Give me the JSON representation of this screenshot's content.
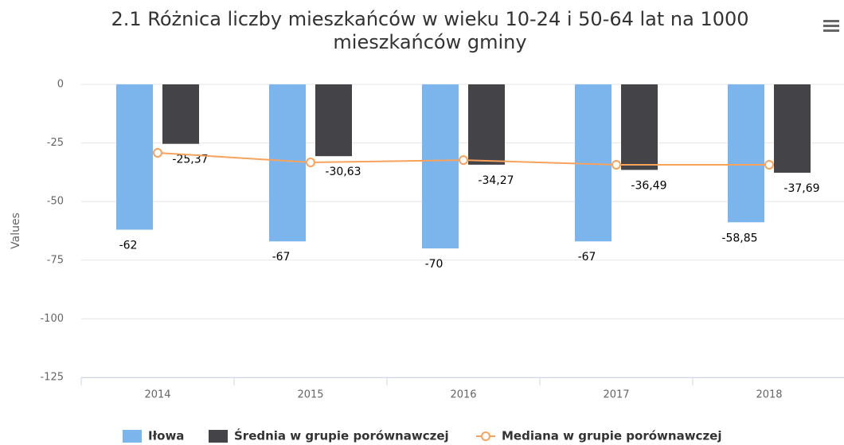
{
  "chart_data": {
    "type": "bar",
    "title": "2.1 Różnica liczby mieszkańców w wieku 10-24 i 50-64 lat na 1000 mieszkańców gminy",
    "y_label": "Values",
    "categories": [
      "2014",
      "2015",
      "2016",
      "2017",
      "2018"
    ],
    "series": [
      {
        "name": "Iłowa",
        "color": "#7cb5ec",
        "type": "bar",
        "values": [
          -62,
          -67,
          -70,
          -67,
          -58.85
        ],
        "value_labels": [
          "-62",
          "-67",
          "-70",
          "-67",
          "-58,85"
        ]
      },
      {
        "name": "Średnia w grupie porównawczej",
        "color": "#434348",
        "type": "bar",
        "values": [
          -25.37,
          -30.63,
          -34.27,
          -36.49,
          -37.69
        ],
        "value_labels": [
          "-25,37",
          "-30,63",
          "-34,27",
          "-36,49",
          "-37,69"
        ]
      },
      {
        "name": "Mediana w grupie porównawczej",
        "color": "#f7a35c",
        "type": "line",
        "values": [
          -29.2,
          -33.3,
          -32.3,
          -34.3,
          -34.3
        ]
      }
    ],
    "ylim": [
      -125,
      0
    ],
    "yticks": [
      0,
      -25,
      -50,
      -75,
      -100,
      -125
    ],
    "grid": true,
    "legend": "bottom"
  }
}
